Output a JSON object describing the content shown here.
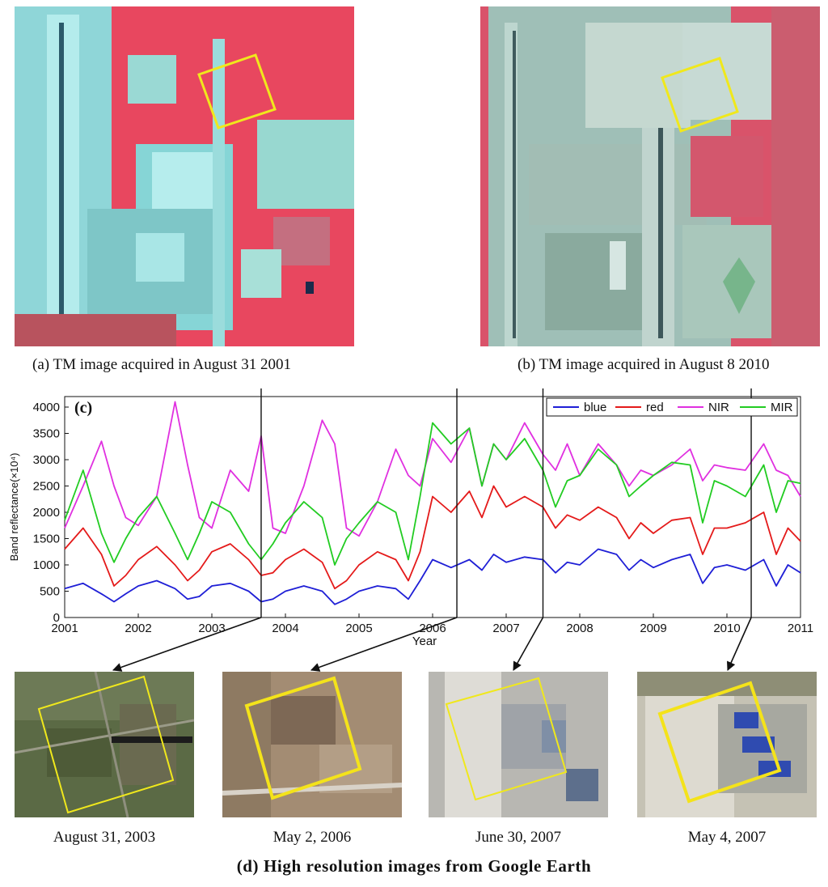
{
  "satellite_panels": {
    "a": {
      "caption": "(a) TM image acquired in August 31 2001"
    },
    "b": {
      "caption": "(b) TM image acquired in August 8 2010"
    }
  },
  "chart_data": {
    "type": "line",
    "panel_label": "(c)",
    "xlabel": "Year",
    "ylabel": "Band reflectance(×10⁴)",
    "xlim": [
      2001,
      2011
    ],
    "ylim": [
      0,
      4200
    ],
    "x_ticks": [
      "2001",
      "2002",
      "2003",
      "2004",
      "2005",
      "2006",
      "2007",
      "2008",
      "2009",
      "2010",
      "2011"
    ],
    "y_ticks": [
      "0",
      "500",
      "1000",
      "1500",
      "2000",
      "2500",
      "3000",
      "3500",
      "4000"
    ],
    "legend_position": "top-right",
    "colors": {
      "blue": "#1f1fd6",
      "red": "#e41a1a",
      "NIR": "#e030e0",
      "MIR": "#22cc22"
    },
    "event_markers": [
      2003.67,
      2006.33,
      2007.5,
      2010.33
    ],
    "series": [
      {
        "name": "blue",
        "color": "#1f1fd6",
        "x": [
          2001.0,
          2001.25,
          2001.5,
          2001.67,
          2001.83,
          2002.0,
          2002.25,
          2002.5,
          2002.67,
          2002.83,
          2003.0,
          2003.25,
          2003.5,
          2003.67,
          2003.83,
          2004.0,
          2004.25,
          2004.5,
          2004.67,
          2004.83,
          2005.0,
          2005.25,
          2005.5,
          2005.67,
          2005.83,
          2006.0,
          2006.25,
          2006.5,
          2006.67,
          2006.83,
          2007.0,
          2007.25,
          2007.5,
          2007.67,
          2007.83,
          2008.0,
          2008.25,
          2008.5,
          2008.67,
          2008.83,
          2009.0,
          2009.25,
          2009.5,
          2009.67,
          2009.83,
          2010.0,
          2010.25,
          2010.5,
          2010.67,
          2010.83,
          2011.0
        ],
        "y": [
          550,
          650,
          450,
          300,
          450,
          600,
          700,
          550,
          350,
          400,
          600,
          650,
          500,
          300,
          350,
          500,
          600,
          500,
          250,
          350,
          500,
          600,
          550,
          350,
          700,
          1100,
          950,
          1100,
          900,
          1200,
          1050,
          1150,
          1100,
          850,
          1050,
          1000,
          1300,
          1200,
          900,
          1100,
          950,
          1100,
          1200,
          650,
          950,
          1000,
          900,
          1100,
          600,
          1000,
          850
        ]
      },
      {
        "name": "red",
        "color": "#e41a1a",
        "x": [
          2001.0,
          2001.25,
          2001.5,
          2001.67,
          2001.83,
          2002.0,
          2002.25,
          2002.5,
          2002.67,
          2002.83,
          2003.0,
          2003.25,
          2003.5,
          2003.67,
          2003.83,
          2004.0,
          2004.25,
          2004.5,
          2004.67,
          2004.83,
          2005.0,
          2005.25,
          2005.5,
          2005.67,
          2005.83,
          2006.0,
          2006.25,
          2006.5,
          2006.67,
          2006.83,
          2007.0,
          2007.25,
          2007.5,
          2007.67,
          2007.83,
          2008.0,
          2008.25,
          2008.5,
          2008.67,
          2008.83,
          2009.0,
          2009.25,
          2009.5,
          2009.67,
          2009.83,
          2010.0,
          2010.25,
          2010.5,
          2010.67,
          2010.83,
          2011.0
        ],
        "y": [
          1300,
          1700,
          1200,
          600,
          800,
          1100,
          1350,
          1000,
          700,
          900,
          1250,
          1400,
          1100,
          800,
          850,
          1100,
          1300,
          1050,
          550,
          700,
          1000,
          1250,
          1100,
          700,
          1250,
          2300,
          2000,
          2400,
          1900,
          2500,
          2100,
          2300,
          2100,
          1700,
          1950,
          1850,
          2100,
          1900,
          1500,
          1800,
          1600,
          1850,
          1900,
          1200,
          1700,
          1700,
          1800,
          2000,
          1200,
          1700,
          1450
        ]
      },
      {
        "name": "NIR",
        "color": "#e030e0",
        "x": [
          2001.0,
          2001.25,
          2001.5,
          2001.67,
          2001.83,
          2002.0,
          2002.25,
          2002.5,
          2002.67,
          2002.83,
          2003.0,
          2003.25,
          2003.5,
          2003.67,
          2003.83,
          2004.0,
          2004.25,
          2004.5,
          2004.67,
          2004.83,
          2005.0,
          2005.25,
          2005.5,
          2005.67,
          2005.83,
          2006.0,
          2006.25,
          2006.5,
          2006.67,
          2006.83,
          2007.0,
          2007.25,
          2007.5,
          2007.67,
          2007.83,
          2008.0,
          2008.25,
          2008.5,
          2008.67,
          2008.83,
          2009.0,
          2009.25,
          2009.5,
          2009.67,
          2009.83,
          2010.0,
          2010.25,
          2010.5,
          2010.67,
          2010.83,
          2011.0
        ],
        "y": [
          1700,
          2500,
          3350,
          2500,
          1900,
          1750,
          2300,
          4100,
          2900,
          1900,
          1700,
          2800,
          2400,
          3450,
          1700,
          1600,
          2500,
          3750,
          3300,
          1700,
          1550,
          2200,
          3200,
          2700,
          2500,
          3400,
          2950,
          3600,
          2500,
          3300,
          3000,
          3700,
          3100,
          2800,
          3300,
          2700,
          3300,
          2900,
          2500,
          2800,
          2700,
          2900,
          3200,
          2600,
          2900,
          2850,
          2800,
          3300,
          2800,
          2700,
          2300
        ]
      },
      {
        "name": "MIR",
        "color": "#22cc22",
        "x": [
          2001.0,
          2001.25,
          2001.5,
          2001.67,
          2001.83,
          2002.0,
          2002.25,
          2002.5,
          2002.67,
          2002.83,
          2003.0,
          2003.25,
          2003.5,
          2003.67,
          2003.83,
          2004.0,
          2004.25,
          2004.5,
          2004.67,
          2004.83,
          2005.0,
          2005.25,
          2005.5,
          2005.67,
          2005.83,
          2006.0,
          2006.25,
          2006.5,
          2006.67,
          2006.83,
          2007.0,
          2007.25,
          2007.5,
          2007.67,
          2007.83,
          2008.0,
          2008.25,
          2008.5,
          2008.67,
          2008.83,
          2009.0,
          2009.25,
          2009.5,
          2009.67,
          2009.83,
          2010.0,
          2010.25,
          2010.5,
          2010.67,
          2010.83,
          2011.0
        ],
        "y": [
          1850,
          2800,
          1600,
          1050,
          1500,
          1900,
          2300,
          1600,
          1100,
          1600,
          2200,
          2000,
          1400,
          1100,
          1400,
          1800,
          2200,
          1900,
          1000,
          1500,
          1800,
          2200,
          2000,
          1100,
          2300,
          3700,
          3300,
          3600,
          2500,
          3300,
          3000,
          3400,
          2800,
          2100,
          2600,
          2700,
          3200,
          2900,
          2300,
          2500,
          2700,
          2950,
          2900,
          1800,
          2600,
          2500,
          2300,
          2900,
          2000,
          2600,
          2550
        ]
      }
    ]
  },
  "google_earth": {
    "caption": "(d) High  resolution  images  from  Google  Earth",
    "images": [
      {
        "date": "August 31, 2003"
      },
      {
        "date": "May 2, 2006"
      },
      {
        "date": "June 30, 2007"
      },
      {
        "date": "May 4, 2007"
      }
    ]
  }
}
